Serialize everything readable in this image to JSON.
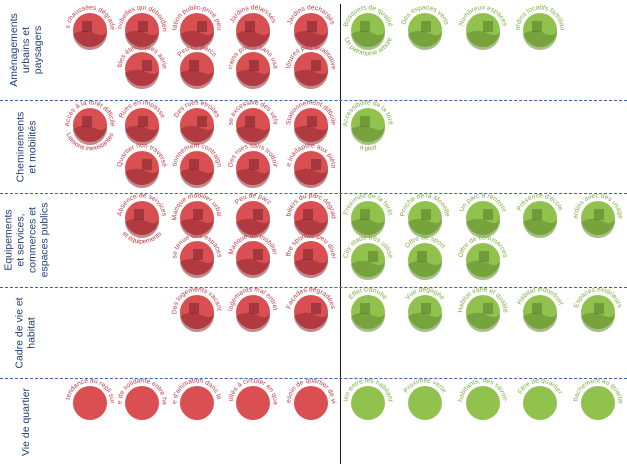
{
  "colors": {
    "negative": "#d94f52",
    "positive": "#92c24e",
    "title": "#1f3f73",
    "separator": "#3f5fa8"
  },
  "rows": [
    {
      "title_lines": [
        "Aménagements",
        "urbains et",
        "paysagers"
      ],
      "negative": [
        {
          "top": "Des chaussées dégradées",
          "bottom": ""
        },
        {
          "top": "Poubelles qui débordent",
          "bottom": ""
        },
        {
          "top": "Délimitation public-privé peu lisible",
          "bottom": ""
        },
        {
          "top": "Jardins délaissés",
          "bottom": ""
        },
        {
          "top": "Jardins déchargés",
          "bottom": ""
        },
        {
          "top": "Câbles électriques aériens",
          "bottom": ""
        },
        {
          "top": "Peu de parcs",
          "bottom": ""
        },
        {
          "top": "Terrains privés sans usage",
          "bottom": ""
        },
        {
          "top": "Clôtures peu qualitatives",
          "bottom": ""
        }
      ],
      "positive": [
        {
          "top": "Bosquets de qualité",
          "bottom": "Un patrimoine arboré"
        },
        {
          "top": "Des espaces verts",
          "bottom": ""
        },
        {
          "top": "Nombreux espaces",
          "bottom": ""
        },
        {
          "top": "Jardins locatifs familiaux",
          "bottom": ""
        }
      ]
    },
    {
      "title_lines": [
        "Cheminements",
        "et mobilités"
      ],
      "negative": [
        {
          "top": "Accès à la forêt difficile",
          "bottom": "Liaisons inexistantes"
        },
        {
          "top": "Rues en impasse",
          "bottom": ""
        },
        {
          "top": "Des rues étroites",
          "bottom": ""
        },
        {
          "top": "Vitesse excessive des véhicules",
          "bottom": ""
        },
        {
          "top": "Stationnement difficile",
          "bottom": ""
        },
        {
          "top": "Quartier non traversé",
          "bottom": ""
        },
        {
          "top": "Stationnement contraignant",
          "bottom": ""
        },
        {
          "top": "Des rues sans trottoir",
          "bottom": ""
        },
        {
          "top": "Rue inadaptée aux piétons",
          "bottom": ""
        }
      ],
      "positive": [
        {
          "top": "Accessibilité de la forêt",
          "bottom": "à pied"
        }
      ]
    },
    {
      "title_lines": [
        "Equipements",
        "et services,",
        "commerces et",
        "espaces publics"
      ],
      "negative": [
        {
          "top": "Absence de services",
          "bottom": "et équipements"
        },
        {
          "top": "Manque mobilier urbain",
          "bottom": ""
        },
        {
          "top": "Peu de parc",
          "bottom": ""
        },
        {
          "top": "Mobiliers du parc dégradés",
          "bottom": ""
        },
        {
          "top": "Mauvaise tenue des espaces publics",
          "bottom": ""
        },
        {
          "top": "Manque de mobilier",
          "bottom": ""
        },
        {
          "top": "Une offre sportive peu diversifiée",
          "bottom": ""
        }
      ],
      "positive": [
        {
          "top": "Proximité de la forêt",
          "bottom": ""
        },
        {
          "top": "Proche de la Moselle",
          "bottom": ""
        },
        {
          "top": "Un parc à rénover",
          "bottom": ""
        },
        {
          "top": "Présence d'école",
          "bottom": ""
        },
        {
          "top": "Jardins avec des usages",
          "bottom": ""
        },
        {
          "top": "City stade très utilisé",
          "bottom": ""
        },
        {
          "top": "Offre de sport",
          "bottom": ""
        },
        {
          "top": "Offre de commerces",
          "bottom": ""
        }
      ]
    },
    {
      "title_lines": [
        "Cadre de vie et",
        "habitat"
      ],
      "negative": [
        {
          "top": "Des logements vacants",
          "bottom": ""
        },
        {
          "top": "Des logements mal entretenus",
          "bottom": ""
        },
        {
          "top": "Façades dégradées",
          "bottom": ""
        }
      ],
      "positive": [
        {
          "top": "Effet Danube",
          "bottom": ""
        },
        {
          "top": "Vue dégagée",
          "bottom": ""
        },
        {
          "top": "Habitat varié et qualité",
          "bottom": ""
        },
        {
          "top": "Habitat individuel",
          "bottom": ""
        },
        {
          "top": "Espaces extérieurs",
          "bottom": ""
        }
      ]
    },
    {
      "title_lines": [
        "Vie de quartier"
      ],
      "negative": [
        {
          "top": "Une tendance au repli sur soi",
          "bottom": ""
        },
        {
          "top": "Manque de solidarité entre habitants",
          "bottom": ""
        },
        {
          "top": "Manque d'animation dans le quartier",
          "bottom": ""
        },
        {
          "top": "Difficultés à circuler en quartier",
          "bottom": ""
        },
        {
          "top": "Besoin de quartier de vie",
          "bottom": ""
        }
      ],
      "positive": [
        {
          "top": "Lien entre les habitants",
          "bottom": ""
        },
        {
          "top": "Proximité verte",
          "bottom": ""
        },
        {
          "top": "Des habitants, des savoir-faire",
          "bottom": ""
        },
        {
          "top": "Fête de quartier",
          "bottom": ""
        },
        {
          "top": "Attachement au quartier",
          "bottom": ""
        }
      ]
    }
  ]
}
